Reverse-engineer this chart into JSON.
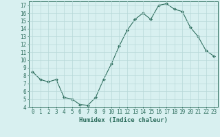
{
  "title": "",
  "xlabel": "Humidex (Indice chaleur)",
  "x": [
    0,
    1,
    2,
    3,
    4,
    5,
    6,
    7,
    8,
    9,
    10,
    11,
    12,
    13,
    14,
    15,
    16,
    17,
    18,
    19,
    20,
    21,
    22,
    23
  ],
  "y": [
    8.5,
    7.5,
    7.2,
    7.5,
    5.2,
    5.0,
    4.3,
    4.2,
    5.2,
    7.5,
    9.5,
    11.8,
    13.8,
    15.2,
    16.0,
    15.2,
    17.0,
    17.2,
    16.5,
    16.2,
    14.2,
    13.0,
    11.2,
    10.5
  ],
  "line_color": "#2e6e5e",
  "marker": "D",
  "marker_size": 2.0,
  "background_color": "#d8f0f0",
  "grid_color": "#b8d8d8",
  "ylim": [
    4,
    17.5
  ],
  "xlim": [
    -0.5,
    23.5
  ],
  "yticks": [
    4,
    5,
    6,
    7,
    8,
    9,
    10,
    11,
    12,
    13,
    14,
    15,
    16,
    17
  ],
  "xticks": [
    0,
    1,
    2,
    3,
    4,
    5,
    6,
    7,
    8,
    9,
    10,
    11,
    12,
    13,
    14,
    15,
    16,
    17,
    18,
    19,
    20,
    21,
    22,
    23
  ],
  "tick_fontsize": 5.5,
  "xlabel_fontsize": 6.5,
  "axis_color": "#2e6e5e",
  "linewidth": 0.8
}
